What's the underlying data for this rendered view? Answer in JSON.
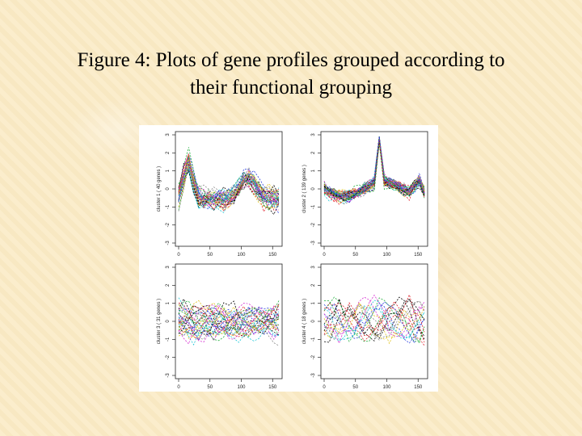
{
  "slide": {
    "title_line1": "Figure 4: Plots of gene profiles grouped according to",
    "title_line2": "their functional grouping"
  },
  "chart_data": [
    {
      "type": "line",
      "ylabel": "cluster 1 ( 40 genes )",
      "xlim": [
        0,
        160
      ],
      "ylim": [
        -3,
        3
      ],
      "x_ticks": [
        "0",
        "50",
        "100",
        "150"
      ],
      "y_ticks": [
        "-3",
        "-2",
        "-1",
        "0",
        "1",
        "2",
        "3"
      ],
      "n_profiles": 40,
      "description_pattern": "peak"
    },
    {
      "type": "line",
      "ylabel": "cluster 2 ( 139 genes )",
      "xlim": [
        0,
        160
      ],
      "ylim": [
        -3,
        3
      ],
      "x_ticks": [
        "0",
        "50",
        "100",
        "150"
      ],
      "y_ticks": [
        "-3",
        "-2",
        "-1",
        "0",
        "1",
        "2",
        "3"
      ],
      "n_profiles": 139
    },
    {
      "type": "line",
      "ylabel": "cluster 3 ( 31 genes )",
      "xlim": [
        0,
        160
      ],
      "ylim": [
        -3,
        3
      ],
      "x_ticks": [
        "0",
        "50",
        "100",
        "150"
      ],
      "y_ticks": [
        "-3",
        "-2",
        "-1",
        "0",
        "1",
        "2",
        "3"
      ],
      "n_profiles": 31
    },
    {
      "type": "line",
      "ylabel": "cluster 4 ( 18 genes )",
      "xlim": [
        0,
        160
      ],
      "ylim": [
        -3,
        3
      ],
      "x_ticks": [
        "0",
        "50",
        "100",
        "150"
      ],
      "y_ticks": [
        "-3",
        "-2",
        "-1",
        "0",
        "1",
        "2",
        "3"
      ],
      "n_profiles": 18
    }
  ],
  "palette": [
    "#000000",
    "#e0202a",
    "#1fae3a",
    "#2a3fe0",
    "#19c6d6",
    "#d62ad0",
    "#e0c21a",
    "#8a8a8a"
  ]
}
